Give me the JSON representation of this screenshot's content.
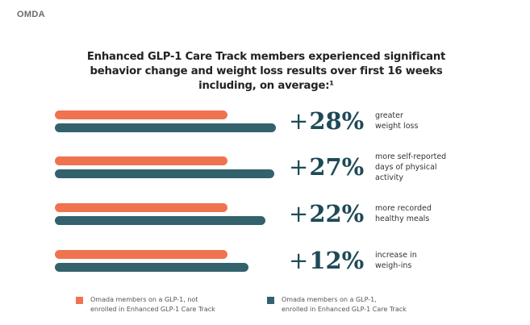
{
  "brand": "OMDA",
  "chart_data": {
    "type": "bar",
    "orientation": "horizontal",
    "title": [
      "Enhanced GLP-1 Care Track members experienced significant",
      "behavior change and weight loss results over first 16 weeks",
      "including, on average:¹"
    ],
    "categories": [
      {
        "stat": "28%",
        "lines": [
          "greater",
          "weight loss"
        ]
      },
      {
        "stat": "27%",
        "lines": [
          "more self-reported",
          "days of physical",
          "activity"
        ]
      },
      {
        "stat": "22%",
        "lines": [
          "more recorded",
          "healthy meals"
        ]
      },
      {
        "stat": "12%",
        "lines": [
          "increase in",
          "weigh-ins"
        ]
      }
    ],
    "plus_sign": "+",
    "series": [
      {
        "name": "Omada members on a GLP-1, not enrolled in Enhanced GLP-1 Care Track",
        "legend_lines": [
          "Omada members on a GLP-1, not",
          "enrolled in Enhanced GLP-1 Care Track"
        ],
        "color": "#f07350",
        "values": [
          100,
          100,
          100,
          100
        ]
      },
      {
        "name": "Omada members on a GLP-1, enrolled in Enhanced GLP-1 Care Track",
        "legend_lines": [
          "Omada members on a GLP-1,",
          "enrolled in Enhanced GLP-1 Care Track"
        ],
        "color": "#33626c",
        "values": [
          128,
          127,
          122,
          112
        ]
      }
    ],
    "legend_position": "bottom"
  }
}
